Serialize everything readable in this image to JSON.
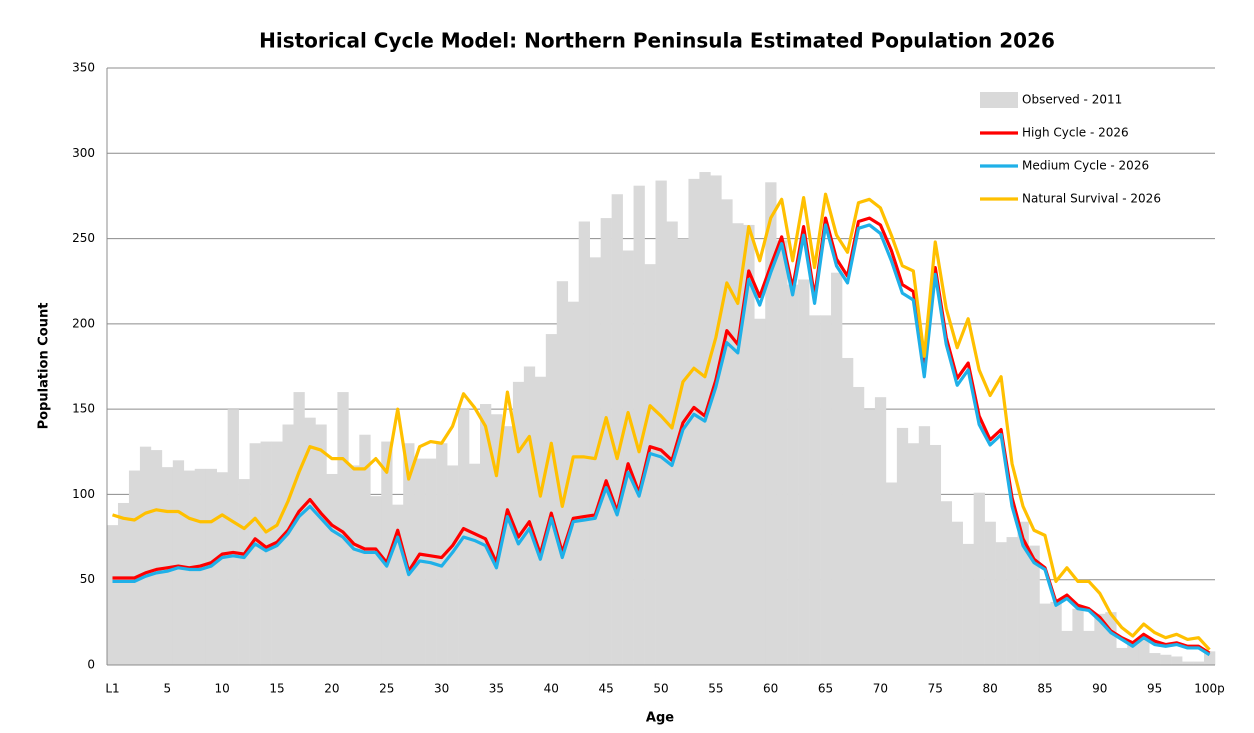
{
  "chart_data": {
    "type": "combo",
    "title": "Historical Cycle Model: Northern Peninsula Estimated Population 2026",
    "x_label": "Age",
    "y_label": "Population Count",
    "categories": [
      "L1",
      null,
      null,
      null,
      null,
      "5",
      null,
      null,
      null,
      null,
      "10",
      null,
      null,
      null,
      null,
      "15",
      null,
      null,
      null,
      null,
      "20",
      null,
      null,
      null,
      null,
      "25",
      null,
      null,
      null,
      null,
      "30",
      null,
      null,
      null,
      null,
      "35",
      null,
      null,
      null,
      null,
      "40",
      null,
      null,
      null,
      null,
      "45",
      null,
      null,
      null,
      null,
      "50",
      null,
      null,
      null,
      null,
      "55",
      null,
      null,
      null,
      null,
      "60",
      null,
      null,
      null,
      null,
      "65",
      null,
      null,
      null,
      null,
      "70",
      null,
      null,
      null,
      null,
      "75",
      null,
      null,
      null,
      null,
      "80",
      null,
      null,
      null,
      null,
      "85",
      null,
      null,
      null,
      null,
      "90",
      null,
      null,
      null,
      null,
      "95",
      null,
      null,
      null,
      null,
      "100p"
    ],
    "ylim": [
      0,
      350
    ],
    "yticks": [
      0,
      50,
      100,
      150,
      200,
      250,
      300,
      350
    ],
    "grid": true,
    "legend": "top-right",
    "series": [
      {
        "name": "Observed - 2011",
        "type": "bar",
        "color": "#d9d9d9",
        "values": [
          82,
          95,
          114,
          128,
          126,
          116,
          120,
          114,
          115,
          115,
          113,
          150,
          109,
          130,
          131,
          131,
          141,
          160,
          145,
          141,
          112,
          160,
          117,
          135,
          99,
          131,
          94,
          130,
          121,
          121,
          130,
          117,
          150,
          118,
          153,
          147,
          140,
          166,
          175,
          169,
          194,
          225,
          213,
          260,
          239,
          262,
          276,
          243,
          281,
          235,
          284,
          260,
          250,
          285,
          289,
          287,
          273,
          259,
          258,
          203,
          283,
          249,
          223,
          226,
          205,
          205,
          230,
          180,
          163,
          150,
          157,
          107,
          139,
          130,
          140,
          129,
          96,
          84,
          71,
          101,
          84,
          72,
          75,
          84,
          70,
          36,
          37,
          20,
          33,
          20,
          30,
          31,
          10,
          12,
          15,
          7,
          6,
          5,
          2,
          2,
          8
        ]
      },
      {
        "name": "High Cycle - 2026",
        "type": "line",
        "color": "#ff0000",
        "values": [
          51,
          51,
          51,
          54,
          56,
          57,
          58,
          57,
          58,
          60,
          65,
          66,
          65,
          74,
          69,
          72,
          79,
          90,
          97,
          89,
          82,
          78,
          71,
          68,
          68,
          60,
          79,
          55,
          65,
          64,
          63,
          70,
          80,
          77,
          74,
          60,
          91,
          75,
          84,
          65,
          89,
          66,
          86,
          87,
          88,
          108,
          90,
          118,
          101,
          128,
          126,
          120,
          142,
          151,
          146,
          167,
          196,
          188,
          231,
          216,
          234,
          251,
          221,
          257,
          216,
          262,
          238,
          228,
          260,
          262,
          258,
          243,
          223,
          219,
          173,
          233,
          192,
          168,
          177,
          146,
          132,
          138,
          98,
          74,
          62,
          57,
          37,
          41,
          35,
          33,
          28,
          20,
          16,
          13,
          18,
          14,
          12,
          13,
          11,
          11,
          7
        ]
      },
      {
        "name": "Medium Cycle - 2026",
        "type": "line",
        "color": "#1fb0e8",
        "values": [
          49,
          49,
          49,
          52,
          54,
          55,
          57,
          56,
          56,
          58,
          63,
          64,
          63,
          71,
          67,
          70,
          77,
          87,
          93,
          86,
          79,
          75,
          68,
          66,
          66,
          58,
          75,
          53,
          61,
          60,
          58,
          66,
          75,
          73,
          70,
          57,
          87,
          71,
          80,
          62,
          86,
          63,
          84,
          85,
          86,
          104,
          88,
          113,
          99,
          124,
          122,
          117,
          138,
          147,
          143,
          163,
          189,
          183,
          226,
          211,
          230,
          247,
          217,
          252,
          212,
          258,
          234,
          224,
          256,
          258,
          253,
          237,
          218,
          214,
          169,
          229,
          188,
          164,
          173,
          141,
          129,
          135,
          93,
          70,
          60,
          56,
          35,
          39,
          33,
          32,
          26,
          19,
          15,
          11,
          16,
          12,
          11,
          12,
          10,
          10,
          6
        ]
      },
      {
        "name": "Natural Survival - 2026",
        "type": "line",
        "color": "#ffc000",
        "values": [
          88,
          86,
          85,
          89,
          91,
          90,
          90,
          86,
          84,
          84,
          88,
          84,
          80,
          86,
          78,
          82,
          96,
          113,
          128,
          126,
          121,
          121,
          115,
          115,
          121,
          113,
          150,
          109,
          128,
          131,
          130,
          140,
          159,
          151,
          140,
          111,
          160,
          125,
          134,
          99,
          130,
          93,
          122,
          122,
          121,
          145,
          121,
          148,
          125,
          152,
          146,
          139,
          166,
          174,
          169,
          192,
          224,
          212,
          257,
          237,
          262,
          273,
          237,
          274,
          233,
          276,
          252,
          242,
          271,
          273,
          268,
          252,
          234,
          231,
          181,
          248,
          209,
          186,
          203,
          173,
          158,
          169,
          118,
          93,
          79,
          76,
          49,
          57,
          49,
          49,
          42,
          30,
          22,
          17,
          24,
          19,
          16,
          18,
          15,
          16,
          9
        ]
      }
    ]
  }
}
